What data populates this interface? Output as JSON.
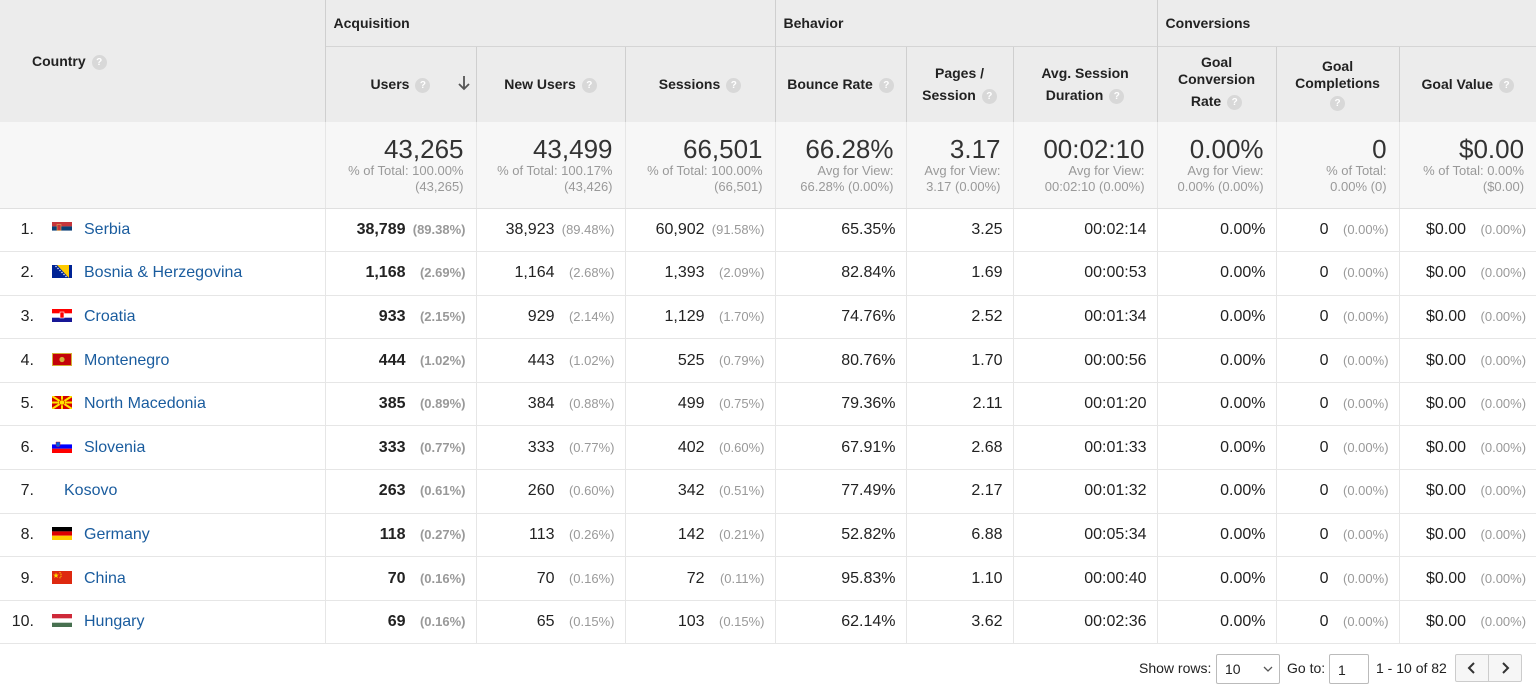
{
  "groups": {
    "acquisition": "Acquisition",
    "behavior": "Behavior",
    "conversions": "Conversions"
  },
  "columns": {
    "country": "Country",
    "users": "Users",
    "new_users": "New Users",
    "sessions": "Sessions",
    "bounce_rate": "Bounce Rate",
    "pages_session_1": "Pages /",
    "pages_session_2": "Session",
    "avg_dur_1": "Avg. Session",
    "avg_dur_2": "Duration",
    "gcr_1": "Goal",
    "gcr_2": "Conversion",
    "gcr_3": "Rate",
    "gc_1": "Goal",
    "gc_2": "Completions",
    "goal_value": "Goal Value",
    "help": "?"
  },
  "totals": {
    "users": {
      "big": "43,265",
      "sub1": "% of Total: 100.00%",
      "sub2": "(43,265)"
    },
    "new_users": {
      "big": "43,499",
      "sub1": "% of Total: 100.17%",
      "sub2": "(43,426)"
    },
    "sessions": {
      "big": "66,501",
      "sub1": "% of Total: 100.00%",
      "sub2": "(66,501)"
    },
    "bounce_rate": {
      "big": "66.28%",
      "sub1": "Avg for View:",
      "sub2": "66.28% (0.00%)"
    },
    "pages_session": {
      "big": "3.17",
      "sub1": "Avg for View:",
      "sub2": "3.17 (0.00%)"
    },
    "avg_duration": {
      "big": "00:02:10",
      "sub1": "Avg for View:",
      "sub2": "00:02:10 (0.00%)"
    },
    "goal_conv_rate": {
      "big": "0.00%",
      "sub1": "Avg for View:",
      "sub2": "0.00% (0.00%)"
    },
    "goal_completions": {
      "big": "0",
      "sub1": "% of Total:",
      "sub2": "0.00% (0)"
    },
    "goal_value": {
      "big": "$0.00",
      "sub1": "% of Total: 0.00%",
      "sub2": "($0.00)"
    }
  },
  "rows": [
    {
      "idx": "1.",
      "flag": "serbia",
      "country": "Serbia",
      "users": "38,789",
      "users_p": "(89.38%)",
      "new_users": "38,923",
      "new_users_p": "(89.48%)",
      "sessions": "60,902",
      "sessions_p": "(91.58%)",
      "bounce": "65.35%",
      "pages": "3.25",
      "duration": "00:02:14",
      "gcr": "0.00%",
      "gc": "0",
      "gc_p": "(0.00%)",
      "gv": "$0.00",
      "gv_p": "(0.00%)"
    },
    {
      "idx": "2.",
      "flag": "bosnia",
      "country": "Bosnia & Herzegovina",
      "users": "1,168",
      "users_p": "(2.69%)",
      "new_users": "1,164",
      "new_users_p": "(2.68%)",
      "sessions": "1,393",
      "sessions_p": "(2.09%)",
      "bounce": "82.84%",
      "pages": "1.69",
      "duration": "00:00:53",
      "gcr": "0.00%",
      "gc": "0",
      "gc_p": "(0.00%)",
      "gv": "$0.00",
      "gv_p": "(0.00%)"
    },
    {
      "idx": "3.",
      "flag": "croatia",
      "country": "Croatia",
      "users": "933",
      "users_p": "(2.15%)",
      "new_users": "929",
      "new_users_p": "(2.14%)",
      "sessions": "1,129",
      "sessions_p": "(1.70%)",
      "bounce": "74.76%",
      "pages": "2.52",
      "duration": "00:01:34",
      "gcr": "0.00%",
      "gc": "0",
      "gc_p": "(0.00%)",
      "gv": "$0.00",
      "gv_p": "(0.00%)"
    },
    {
      "idx": "4.",
      "flag": "montenegro",
      "country": "Montenegro",
      "users": "444",
      "users_p": "(1.02%)",
      "new_users": "443",
      "new_users_p": "(1.02%)",
      "sessions": "525",
      "sessions_p": "(0.79%)",
      "bounce": "80.76%",
      "pages": "1.70",
      "duration": "00:00:56",
      "gcr": "0.00%",
      "gc": "0",
      "gc_p": "(0.00%)",
      "gv": "$0.00",
      "gv_p": "(0.00%)"
    },
    {
      "idx": "5.",
      "flag": "macedonia",
      "country": "North Macedonia",
      "users": "385",
      "users_p": "(0.89%)",
      "new_users": "384",
      "new_users_p": "(0.88%)",
      "sessions": "499",
      "sessions_p": "(0.75%)",
      "bounce": "79.36%",
      "pages": "2.11",
      "duration": "00:01:20",
      "gcr": "0.00%",
      "gc": "0",
      "gc_p": "(0.00%)",
      "gv": "$0.00",
      "gv_p": "(0.00%)"
    },
    {
      "idx": "6.",
      "flag": "slovenia",
      "country": "Slovenia",
      "users": "333",
      "users_p": "(0.77%)",
      "new_users": "333",
      "new_users_p": "(0.77%)",
      "sessions": "402",
      "sessions_p": "(0.60%)",
      "bounce": "67.91%",
      "pages": "2.68",
      "duration": "00:01:33",
      "gcr": "0.00%",
      "gc": "0",
      "gc_p": "(0.00%)",
      "gv": "$0.00",
      "gv_p": "(0.00%)"
    },
    {
      "idx": "7.",
      "flag": "none",
      "country": "Kosovo",
      "users": "263",
      "users_p": "(0.61%)",
      "new_users": "260",
      "new_users_p": "(0.60%)",
      "sessions": "342",
      "sessions_p": "(0.51%)",
      "bounce": "77.49%",
      "pages": "2.17",
      "duration": "00:01:32",
      "gcr": "0.00%",
      "gc": "0",
      "gc_p": "(0.00%)",
      "gv": "$0.00",
      "gv_p": "(0.00%)"
    },
    {
      "idx": "8.",
      "flag": "germany",
      "country": "Germany",
      "users": "118",
      "users_p": "(0.27%)",
      "new_users": "113",
      "new_users_p": "(0.26%)",
      "sessions": "142",
      "sessions_p": "(0.21%)",
      "bounce": "52.82%",
      "pages": "6.88",
      "duration": "00:05:34",
      "gcr": "0.00%",
      "gc": "0",
      "gc_p": "(0.00%)",
      "gv": "$0.00",
      "gv_p": "(0.00%)"
    },
    {
      "idx": "9.",
      "flag": "china",
      "country": "China",
      "users": "70",
      "users_p": "(0.16%)",
      "new_users": "70",
      "new_users_p": "(0.16%)",
      "sessions": "72",
      "sessions_p": "(0.11%)",
      "bounce": "95.83%",
      "pages": "1.10",
      "duration": "00:00:40",
      "gcr": "0.00%",
      "gc": "0",
      "gc_p": "(0.00%)",
      "gv": "$0.00",
      "gv_p": "(0.00%)"
    },
    {
      "idx": "10.",
      "flag": "hungary",
      "country": "Hungary",
      "users": "69",
      "users_p": "(0.16%)",
      "new_users": "65",
      "new_users_p": "(0.15%)",
      "sessions": "103",
      "sessions_p": "(0.15%)",
      "bounce": "62.14%",
      "pages": "3.62",
      "duration": "00:02:36",
      "gcr": "0.00%",
      "gc": "0",
      "gc_p": "(0.00%)",
      "gv": "$0.00",
      "gv_p": "(0.00%)"
    }
  ],
  "footer": {
    "show_rows_label": "Show rows:",
    "show_rows_value": "10",
    "goto_label": "Go to:",
    "goto_value": "1",
    "range": "1 - 10 of 82"
  },
  "colors": {
    "link": "#1a5c9e",
    "header_bg": "#ececec",
    "muted": "#999999"
  }
}
